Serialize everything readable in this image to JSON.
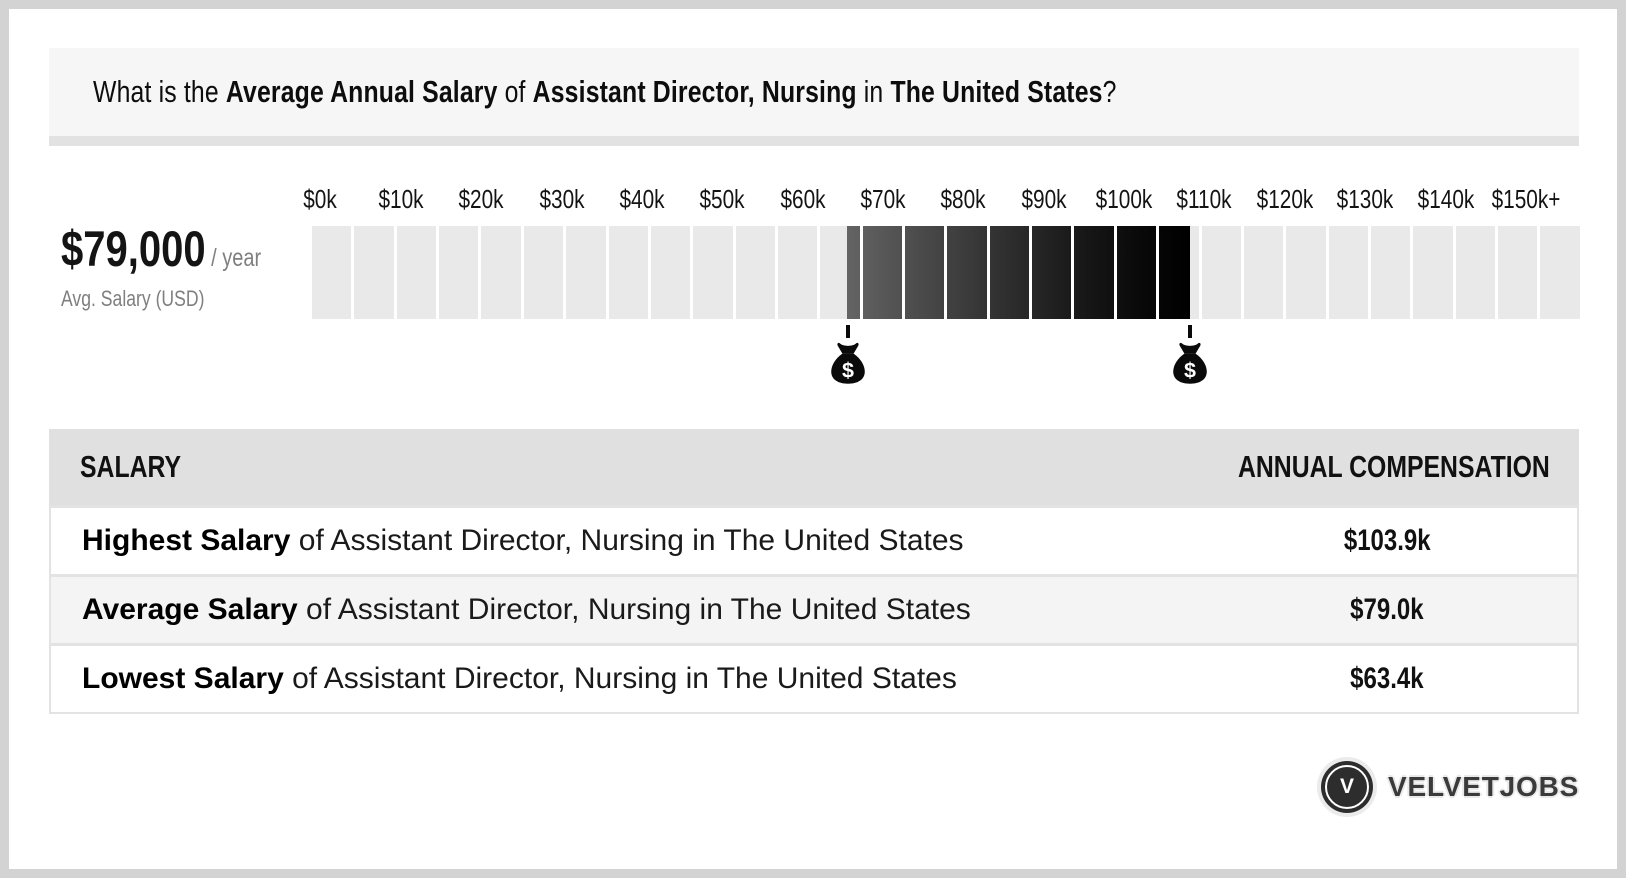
{
  "title": {
    "parts": [
      {
        "text": "What is the ",
        "bold": false
      },
      {
        "text": "Average Annual Salary",
        "bold": true
      },
      {
        "text": " of ",
        "bold": false
      },
      {
        "text": "Assistant Director, Nursing",
        "bold": true
      },
      {
        "text": " in ",
        "bold": false
      },
      {
        "text": "The United States",
        "bold": true
      },
      {
        "text": "?",
        "bold": false
      }
    ]
  },
  "summary": {
    "amount": "$79,000",
    "per": " / year",
    "caption": "Avg. Salary (USD)"
  },
  "chart_data": {
    "type": "bar",
    "variant": "salary-range-scale",
    "axis": {
      "min": 0,
      "max": 150000,
      "tick_step": 10000,
      "ticks": [
        {
          "v": 0,
          "label": "$0k"
        },
        {
          "v": 10,
          "label": "$10k"
        },
        {
          "v": 20,
          "label": "$20k"
        },
        {
          "v": 30,
          "label": "$30k"
        },
        {
          "v": 40,
          "label": "$40k"
        },
        {
          "v": 50,
          "label": "$50k"
        },
        {
          "v": 60,
          "label": "$60k"
        },
        {
          "v": 70,
          "label": "$70k"
        },
        {
          "v": 80,
          "label": "$80k"
        },
        {
          "v": 90,
          "label": "$90k"
        },
        {
          "v": 100,
          "label": "$100k"
        },
        {
          "v": 110,
          "label": "$110k"
        },
        {
          "v": 120,
          "label": "$120k"
        },
        {
          "v": 130,
          "label": "$130k"
        },
        {
          "v": 140,
          "label": "$140k"
        },
        {
          "v": 150,
          "label": "$150k+"
        }
      ]
    },
    "segments": {
      "count": 30,
      "step_value": 5000
    },
    "highlight": {
      "low": 63400,
      "high": 103900,
      "average": 79000,
      "low_label": "$63.4k",
      "high_label": "$103.9k"
    },
    "colors": {
      "track": "#e9e9e9",
      "range_start": "#646464",
      "range_end": "#000000",
      "marker": "#0a0a0a"
    }
  },
  "table": {
    "headers": [
      "SALARY",
      "ANNUAL COMPENSATION"
    ],
    "rows": [
      {
        "label_bold": "Highest Salary",
        "label_rest": " of Assistant Director, Nursing in The United States",
        "value": "$103.9k"
      },
      {
        "label_bold": "Average Salary",
        "label_rest": " of Assistant Director, Nursing in The United States",
        "value": "$79.0k"
      },
      {
        "label_bold": "Lowest Salary",
        "label_rest": " of Assistant Director, Nursing in The United States",
        "value": "$63.4k"
      }
    ]
  },
  "logo": {
    "monogram": "V",
    "name": "VELVETJOBS"
  }
}
